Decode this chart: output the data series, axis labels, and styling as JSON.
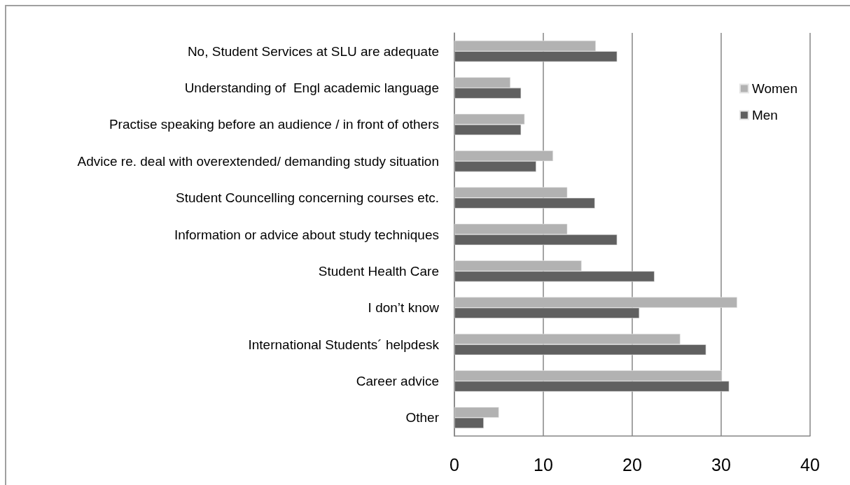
{
  "chart_data": {
    "type": "bar",
    "orientation": "horizontal",
    "categories": [
      "No, Student Services at SLU are adequate",
      "Understanding of  Engl academic language",
      "Practise speaking before an audience / in front of others",
      "Advice re. deal with overextended/ demanding study situation",
      "Student Councelling concerning courses etc.",
      "Information or advice about study techniques",
      "Student Health Care",
      "I don’t know",
      "International Students´ helpdesk",
      "Career advice",
      "Other"
    ],
    "series": [
      {
        "name": "Women",
        "color": "#b2b2b2",
        "values": [
          15.9,
          6.3,
          7.9,
          11.1,
          12.7,
          12.7,
          14.3,
          31.8,
          25.4,
          30.1,
          5.0
        ]
      },
      {
        "name": "Men",
        "color": "#606060",
        "values": [
          18.3,
          7.5,
          7.5,
          9.2,
          15.8,
          18.3,
          22.5,
          20.8,
          28.3,
          30.9,
          3.3
        ]
      }
    ],
    "xlim": [
      0,
      40
    ],
    "xticks": [
      0,
      10,
      20,
      30,
      40
    ],
    "grid": "x",
    "legend": "top right"
  }
}
